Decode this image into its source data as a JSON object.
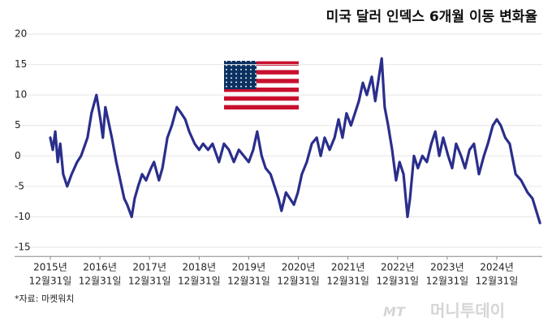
{
  "chart_data": {
    "type": "line",
    "title": "미국 달러 인덱스 6개월 이동 변화율",
    "source": "*자료: 마켓워치",
    "watermark": "머니투데이",
    "watermark_logo": "MT",
    "grid": true,
    "ylim": [
      -16.5,
      20
    ],
    "yticks": [
      20,
      15,
      10,
      5,
      0,
      -5,
      -10,
      -15
    ],
    "xlim": [
      2015.3,
      2025.9
    ],
    "xticks": [
      {
        "value": 2016.0,
        "label": [
          "2015년",
          "12월31일"
        ]
      },
      {
        "value": 2017.0,
        "label": [
          "2016년",
          "12월31일"
        ]
      },
      {
        "value": 2018.0,
        "label": [
          "2017년",
          "12월31일"
        ]
      },
      {
        "value": 2019.0,
        "label": [
          "2018년",
          "12월31일"
        ]
      },
      {
        "value": 2020.0,
        "label": [
          "2019년",
          "12월31일"
        ]
      },
      {
        "value": 2021.0,
        "label": [
          "2020년",
          "12월31일"
        ]
      },
      {
        "value": 2022.0,
        "label": [
          "2021년",
          "12월31일"
        ]
      },
      {
        "value": 2023.0,
        "label": [
          "2022년",
          "12월31일"
        ]
      },
      {
        "value": 2024.0,
        "label": [
          "2023년",
          "12월31일"
        ]
      },
      {
        "value": 2025.0,
        "label": [
          "2024년",
          "12월31일"
        ]
      }
    ],
    "x": [
      2016.0,
      2016.05,
      2016.1,
      2016.15,
      2016.2,
      2016.26,
      2016.34,
      2016.43,
      2016.54,
      2016.62,
      2016.75,
      2016.83,
      2016.93,
      2017.01,
      2017.06,
      2017.11,
      2017.24,
      2017.33,
      2017.41,
      2017.49,
      2017.55,
      2017.64,
      2017.7,
      2017.77,
      2017.85,
      2017.93,
      2018.03,
      2018.09,
      2018.19,
      2018.26,
      2018.36,
      2018.45,
      2018.55,
      2018.64,
      2018.72,
      2018.8,
      2018.91,
      2019.0,
      2019.08,
      2019.18,
      2019.27,
      2019.4,
      2019.5,
      2019.6,
      2019.7,
      2019.8,
      2019.9,
      2020.0,
      2020.09,
      2020.17,
      2020.26,
      2020.34,
      2020.44,
      2020.52,
      2020.6,
      2020.66,
      2020.75,
      2020.83,
      2020.91,
      2020.99,
      2021.07,
      2021.17,
      2021.27,
      2021.37,
      2021.45,
      2021.53,
      2021.63,
      2021.73,
      2021.81,
      2021.89,
      2021.97,
      2022.06,
      2022.14,
      2022.22,
      2022.3,
      2022.38,
      2022.48,
      2022.55,
      2022.68,
      2022.74,
      2022.81,
      2022.89,
      2022.97,
      2023.04,
      2023.12,
      2023.2,
      2023.25,
      2023.33,
      2023.41,
      2023.5,
      2023.59,
      2023.68,
      2023.76,
      2023.84,
      2023.92,
      2024.02,
      2024.1,
      2024.18,
      2024.28,
      2024.36,
      2024.45,
      2024.54,
      2024.64,
      2024.74,
      2024.82,
      2024.92,
      2025.0,
      2025.08,
      2025.17,
      2025.26,
      2025.38,
      2025.49,
      2025.62,
      2025.72,
      2025.87
    ],
    "series": [
      {
        "color": "#2a2e8c",
        "values": [
          3,
          1,
          4,
          -1,
          2,
          -3,
          -5,
          -3,
          -1,
          0,
          3,
          7,
          10,
          6,
          3,
          8,
          3,
          -1,
          -4,
          -7,
          -8,
          -10,
          -7,
          -5,
          -3,
          -4,
          -2,
          -1,
          -4,
          -2,
          3,
          5,
          8,
          7,
          6,
          4,
          2,
          1,
          2,
          1,
          2,
          -1,
          2,
          1,
          -1,
          1,
          0,
          -1,
          1,
          4,
          0,
          -2,
          -3,
          -5,
          -7,
          -9,
          -6,
          -7,
          -8,
          -6,
          -3,
          -1,
          2,
          3,
          0,
          3,
          1,
          3,
          6,
          3,
          7,
          5,
          7,
          9,
          12,
          10,
          13,
          9,
          16,
          8,
          5,
          1,
          -4,
          -1,
          -3,
          -10,
          -7,
          0,
          -2,
          0,
          -1,
          2,
          4,
          0,
          3,
          0,
          -2,
          2,
          0,
          -2,
          1,
          2,
          -3,
          0,
          2,
          5,
          6,
          5,
          3,
          2,
          -3,
          -4,
          -6,
          -7,
          -11
        ]
      }
    ]
  }
}
